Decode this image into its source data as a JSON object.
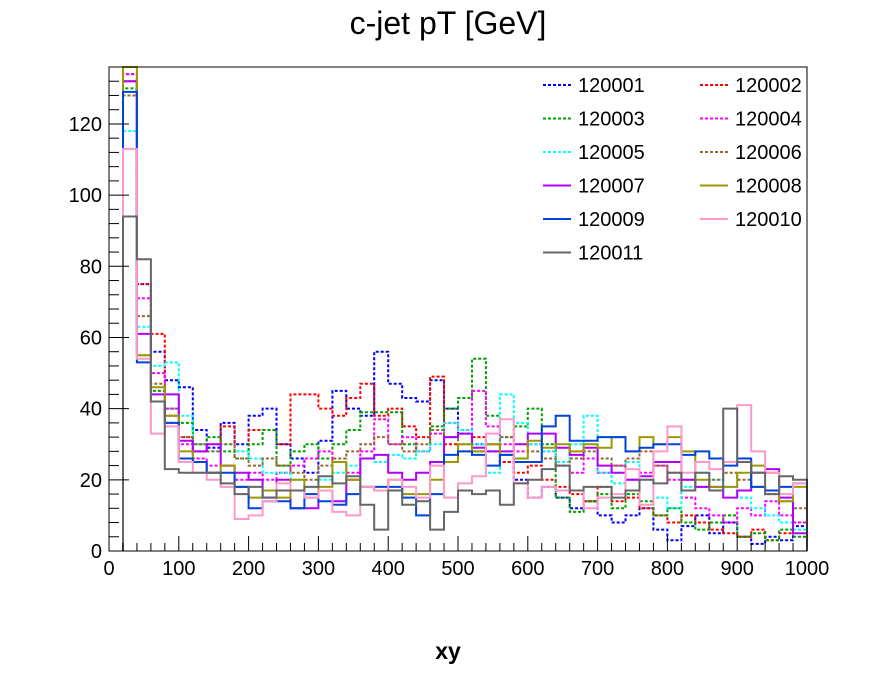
{
  "chart_data": {
    "type": "line",
    "subtype": "step-histogram",
    "title": "c-jet pT [GeV]",
    "xlabel": "xy",
    "ylabel": "",
    "xlim": [
      0,
      1000
    ],
    "ylim": [
      0,
      136
    ],
    "xticks": [
      0,
      100,
      200,
      300,
      400,
      500,
      600,
      700,
      800,
      900,
      1000
    ],
    "xtick_labels": [
      "0",
      "100",
      "200",
      "300",
      "400",
      "500",
      "600",
      "700",
      "800",
      "900",
      "1000"
    ],
    "yticks": [
      0,
      20,
      40,
      60,
      80,
      100,
      120
    ],
    "ytick_labels": [
      "0",
      "20",
      "40",
      "60",
      "80",
      "100",
      "120"
    ],
    "grid": false,
    "legend_position": "top-right",
    "bin_edges": [
      20,
      40,
      60,
      80,
      100,
      120,
      140,
      160,
      180,
      200,
      220,
      240,
      260,
      280,
      300,
      320,
      340,
      360,
      380,
      400,
      420,
      440,
      460,
      480,
      500,
      520,
      540,
      560,
      580,
      600,
      620,
      640,
      660,
      680,
      700,
      720,
      740,
      760,
      780,
      800,
      820,
      840,
      860,
      880,
      900,
      920,
      940,
      960,
      980,
      1000
    ],
    "series": [
      {
        "name": "120001",
        "color": "#0000ff",
        "dashed": true,
        "values": [
          134,
          75,
          56,
          48,
          46,
          34,
          29,
          36,
          30,
          38,
          40,
          30,
          26,
          22,
          31,
          45,
          40,
          38,
          56,
          47,
          43,
          42,
          48,
          40,
          33,
          30,
          28,
          25,
          20,
          15,
          18,
          15,
          12,
          14,
          10,
          8,
          10,
          12,
          6,
          3,
          7,
          10,
          5,
          8,
          4,
          2,
          4,
          3,
          7
        ]
      },
      {
        "name": "120002",
        "color": "#ff0000",
        "dashed": true,
        "values": [
          132,
          75,
          61,
          38,
          32,
          28,
          30,
          35,
          26,
          34,
          34,
          30,
          44,
          44,
          40,
          38,
          43,
          47,
          38,
          40,
          35,
          32,
          49,
          30,
          28,
          32,
          30,
          25,
          22,
          24,
          20,
          18,
          16,
          14,
          18,
          14,
          15,
          12,
          10,
          8,
          10,
          8,
          6,
          5,
          4,
          6,
          3,
          5,
          8
        ]
      },
      {
        "name": "120003",
        "color": "#00a000",
        "dashed": true,
        "values": [
          130,
          55,
          45,
          40,
          36,
          30,
          32,
          28,
          26,
          30,
          34,
          24,
          28,
          30,
          26,
          30,
          34,
          39,
          39,
          39,
          30,
          28,
          35,
          40,
          43,
          54,
          38,
          32,
          35,
          40,
          30,
          15,
          11,
          14,
          16,
          12,
          16,
          14,
          10,
          12,
          8,
          6,
          8,
          10,
          4,
          5,
          3,
          6,
          4
        ]
      },
      {
        "name": "120004",
        "color": "#ff00ff",
        "dashed": true,
        "values": [
          134,
          71,
          50,
          40,
          30,
          26,
          24,
          24,
          20,
          22,
          20,
          22,
          24,
          26,
          28,
          25,
          22,
          28,
          37,
          30,
          32,
          28,
          33,
          36,
          34,
          45,
          35,
          30,
          28,
          30,
          28,
          24,
          22,
          26,
          22,
          24,
          20,
          22,
          24,
          20,
          15,
          12,
          10,
          8,
          12,
          10,
          14,
          10,
          8
        ]
      },
      {
        "name": "120005",
        "color": "#00ffff",
        "dashed": true,
        "values": [
          118,
          63,
          52,
          53,
          38,
          30,
          28,
          30,
          28,
          26,
          22,
          22,
          20,
          18,
          20,
          22,
          24,
          26,
          25,
          27,
          26,
          28,
          30,
          36,
          34,
          30,
          22,
          44,
          36,
          30,
          28,
          25,
          30,
          38,
          22,
          19,
          25,
          20,
          15,
          12,
          18,
          22,
          20,
          18,
          15,
          12,
          10,
          8,
          6
        ]
      },
      {
        "name": "120006",
        "color": "#996633",
        "dashed": true,
        "values": [
          128,
          66,
          47,
          36,
          32,
          30,
          28,
          30,
          26,
          24,
          26,
          24,
          22,
          20,
          24,
          26,
          28,
          30,
          32,
          30,
          28,
          30,
          34,
          32,
          30,
          28,
          30,
          32,
          30,
          28,
          26,
          24,
          26,
          28,
          26,
          24,
          26,
          28,
          24,
          22,
          20,
          18,
          20,
          22,
          20,
          18,
          16,
          14,
          12
        ]
      },
      {
        "name": "120007",
        "color": "#b000ff",
        "dashed": false,
        "values": [
          132,
          61,
          44,
          44,
          31,
          28,
          30,
          24,
          22,
          20,
          15,
          20,
          12,
          12,
          17,
          14,
          20,
          26,
          27,
          22,
          20,
          22,
          25,
          32,
          33,
          29,
          28,
          28,
          30,
          33,
          33,
          29,
          27,
          29,
          24,
          22,
          20,
          21,
          25,
          25,
          20,
          18,
          18,
          15,
          17,
          22,
          23,
          15,
          5
        ]
      },
      {
        "name": "120008",
        "color": "#999900",
        "dashed": false,
        "values": [
          136,
          55,
          46,
          38,
          28,
          25,
          22,
          24,
          18,
          15,
          17,
          15,
          20,
          15,
          18,
          25,
          20,
          18,
          17,
          20,
          16,
          16,
          20,
          25,
          30,
          28,
          30,
          27,
          26,
          31,
          29,
          30,
          28,
          30,
          29,
          32,
          28,
          32,
          30,
          32,
          28,
          20,
          18,
          18,
          22,
          24,
          22,
          14,
          18
        ]
      },
      {
        "name": "120009",
        "color": "#0044dd",
        "dashed": false,
        "values": [
          129,
          53,
          42,
          36,
          26,
          25,
          22,
          22,
          18,
          12,
          14,
          14,
          12,
          16,
          14,
          13,
          16,
          18,
          18,
          18,
          15,
          10,
          16,
          27,
          28,
          27,
          24,
          27,
          25,
          25,
          35,
          38,
          31,
          31,
          32,
          32,
          28,
          29,
          30,
          30,
          27,
          28,
          26,
          24,
          26,
          18,
          17,
          18,
          19
        ]
      },
      {
        "name": "120010",
        "color": "#ff99cc",
        "dashed": false,
        "values": [
          113,
          54,
          33,
          35,
          25,
          22,
          20,
          18,
          9,
          10,
          14,
          19,
          17,
          15,
          17,
          11,
          10,
          18,
          17,
          20,
          18,
          15,
          24,
          15,
          19,
          21,
          33,
          37,
          19,
          15,
          18,
          17,
          17,
          12,
          15,
          16,
          23,
          13,
          28,
          35,
          22,
          25,
          23,
          25,
          41,
          28,
          22,
          16,
          19
        ]
      },
      {
        "name": "120011",
        "color": "#666666",
        "dashed": false,
        "values": [
          94,
          82,
          42,
          23,
          22,
          22,
          22,
          19,
          16,
          18,
          15,
          17,
          17,
          18,
          21,
          19,
          21,
          13,
          6,
          17,
          13,
          14,
          6,
          11,
          17,
          16,
          17,
          13,
          19,
          20,
          23,
          24,
          17,
          18,
          18,
          15,
          17,
          20,
          19,
          22,
          17,
          22,
          17,
          40,
          25,
          22,
          16,
          21,
          20
        ]
      }
    ]
  }
}
